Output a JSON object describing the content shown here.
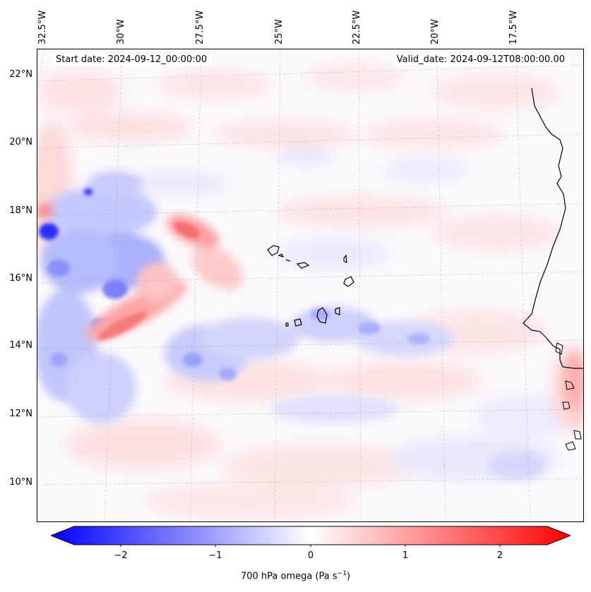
{
  "map": {
    "start_date": "Start date: 2024-09-12_00:00:00",
    "valid_date": "Valid_date: 2024-09-12T08:00:00.00",
    "lon_labels": [
      "32.5°W",
      "30°W",
      "27.5°W",
      "25°W",
      "22.5°W",
      "20°W",
      "17.5°W"
    ],
    "lat_labels": [
      "22°N",
      "20°N",
      "18°N",
      "16°N",
      "14°N",
      "12°N",
      "10°N"
    ],
    "colors": {
      "negative": "#0000ff",
      "zero": "#ffffff",
      "positive": "#ff0000"
    }
  },
  "colorbar": {
    "ticks": [
      "−2",
      "−1",
      "0",
      "1",
      "2"
    ],
    "label_main": "700 hPa omega (Pa s",
    "label_exp": "−1",
    "label_end": ")"
  }
}
